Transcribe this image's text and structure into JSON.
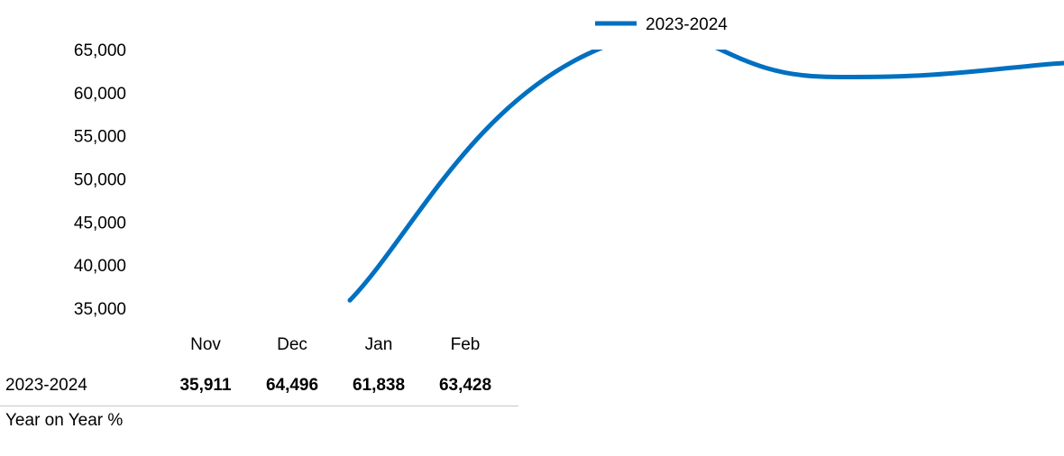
{
  "chart_data": {
    "type": "line",
    "categories": [
      "Nov",
      "Dec",
      "Jan",
      "Feb"
    ],
    "series": [
      {
        "name": "2023-2024",
        "values": [
          35911,
          64496,
          61838,
          63428
        ]
      }
    ],
    "ylim": [
      35000,
      65000
    ],
    "yticks": [
      "65,000",
      "60,000",
      "55,000",
      "50,000",
      "45,000",
      "40,000",
      "35,000"
    ],
    "legend_position": "top",
    "grid": false,
    "line_color": "#0070C0"
  },
  "table": {
    "months": [
      "Nov",
      "Dec",
      "Jan",
      "Feb"
    ],
    "rows": [
      {
        "label": "2023-2024",
        "values": [
          "35,911",
          "64,496",
          "61,838",
          "63,428"
        ]
      }
    ],
    "yoy_label": "Year on Year %"
  }
}
